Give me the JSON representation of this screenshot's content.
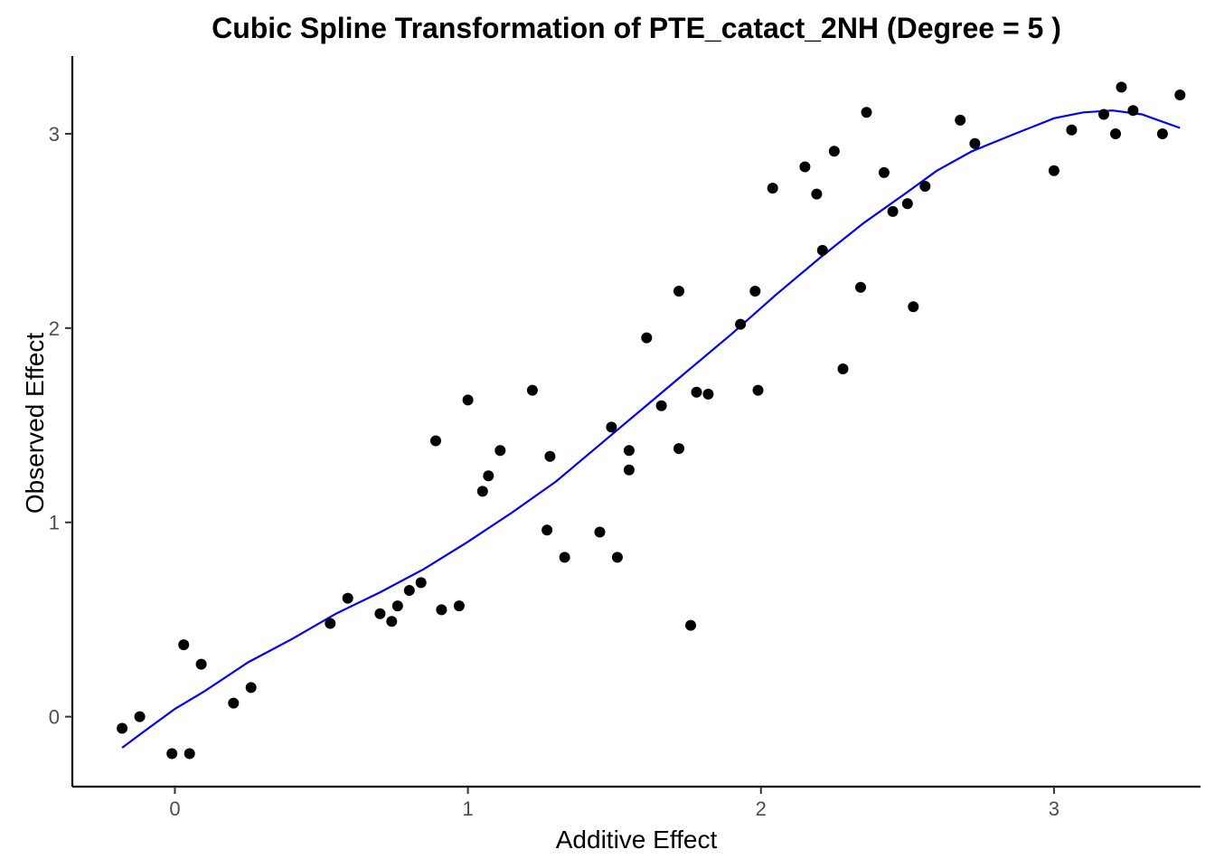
{
  "chart_data": {
    "type": "scatter",
    "title": "Cubic Spline Transformation of PTE_catact_2NH (Degree = 5 )",
    "xlabel": "Additive Effect",
    "ylabel": "Observed Effect",
    "xlim": [
      -0.35,
      3.5
    ],
    "ylim": [
      -0.36,
      3.4
    ],
    "x_ticks": [
      0,
      1,
      2,
      3
    ],
    "y_ticks": [
      0,
      1,
      2,
      3
    ],
    "x_tick_labels": [
      "0",
      "1",
      "2",
      "3"
    ],
    "y_tick_labels": [
      "0",
      "1",
      "2",
      "3"
    ],
    "grid": false,
    "legend": "none",
    "colors": {
      "points": "#000000",
      "spline": "#0000ff"
    },
    "series": [
      {
        "kind": "points",
        "points": [
          {
            "x": -0.18,
            "y": -0.06
          },
          {
            "x": -0.12,
            "y": 0.0
          },
          {
            "x": -0.01,
            "y": -0.19
          },
          {
            "x": 0.03,
            "y": 0.37
          },
          {
            "x": 0.05,
            "y": -0.19
          },
          {
            "x": 0.09,
            "y": 0.27
          },
          {
            "x": 0.2,
            "y": 0.07
          },
          {
            "x": 0.26,
            "y": 0.15
          },
          {
            "x": 0.53,
            "y": 0.48
          },
          {
            "x": 0.59,
            "y": 0.61
          },
          {
            "x": 0.7,
            "y": 0.53
          },
          {
            "x": 0.74,
            "y": 0.49
          },
          {
            "x": 0.76,
            "y": 0.57
          },
          {
            "x": 0.8,
            "y": 0.65
          },
          {
            "x": 0.84,
            "y": 0.69
          },
          {
            "x": 0.89,
            "y": 1.42
          },
          {
            "x": 0.91,
            "y": 0.55
          },
          {
            "x": 0.97,
            "y": 0.57
          },
          {
            "x": 1.0,
            "y": 1.63
          },
          {
            "x": 1.05,
            "y": 1.16
          },
          {
            "x": 1.07,
            "y": 1.24
          },
          {
            "x": 1.11,
            "y": 1.37
          },
          {
            "x": 1.22,
            "y": 1.68
          },
          {
            "x": 1.27,
            "y": 0.96
          },
          {
            "x": 1.28,
            "y": 1.34
          },
          {
            "x": 1.33,
            "y": 0.82
          },
          {
            "x": 1.45,
            "y": 0.95
          },
          {
            "x": 1.49,
            "y": 1.49
          },
          {
            "x": 1.51,
            "y": 0.82
          },
          {
            "x": 1.55,
            "y": 1.37
          },
          {
            "x": 1.55,
            "y": 1.27
          },
          {
            "x": 1.61,
            "y": 1.95
          },
          {
            "x": 1.66,
            "y": 1.6
          },
          {
            "x": 1.72,
            "y": 1.38
          },
          {
            "x": 1.72,
            "y": 2.19
          },
          {
            "x": 1.76,
            "y": 0.47
          },
          {
            "x": 1.78,
            "y": 1.67
          },
          {
            "x": 1.82,
            "y": 1.66
          },
          {
            "x": 1.93,
            "y": 2.02
          },
          {
            "x": 1.98,
            "y": 2.19
          },
          {
            "x": 1.99,
            "y": 1.68
          },
          {
            "x": 2.04,
            "y": 2.72
          },
          {
            "x": 2.15,
            "y": 2.83
          },
          {
            "x": 2.19,
            "y": 2.69
          },
          {
            "x": 2.21,
            "y": 2.4
          },
          {
            "x": 2.25,
            "y": 2.91
          },
          {
            "x": 2.28,
            "y": 1.79
          },
          {
            "x": 2.34,
            "y": 2.21
          },
          {
            "x": 2.36,
            "y": 3.11
          },
          {
            "x": 2.42,
            "y": 2.8
          },
          {
            "x": 2.45,
            "y": 2.6
          },
          {
            "x": 2.5,
            "y": 2.64
          },
          {
            "x": 2.52,
            "y": 2.11
          },
          {
            "x": 2.56,
            "y": 2.73
          },
          {
            "x": 2.68,
            "y": 3.07
          },
          {
            "x": 2.73,
            "y": 2.95
          },
          {
            "x": 3.0,
            "y": 2.81
          },
          {
            "x": 3.06,
            "y": 3.02
          },
          {
            "x": 3.17,
            "y": 3.1
          },
          {
            "x": 3.21,
            "y": 3.0
          },
          {
            "x": 3.23,
            "y": 3.24
          },
          {
            "x": 3.27,
            "y": 3.12
          },
          {
            "x": 3.37,
            "y": 3.0
          },
          {
            "x": 3.43,
            "y": 3.2
          }
        ]
      },
      {
        "kind": "line",
        "points": [
          {
            "x": -0.18,
            "y": -0.16
          },
          {
            "x": -0.1,
            "y": -0.07
          },
          {
            "x": 0.0,
            "y": 0.04
          },
          {
            "x": 0.1,
            "y": 0.13
          },
          {
            "x": 0.25,
            "y": 0.28
          },
          {
            "x": 0.4,
            "y": 0.4
          },
          {
            "x": 0.55,
            "y": 0.53
          },
          {
            "x": 0.7,
            "y": 0.64
          },
          {
            "x": 0.85,
            "y": 0.76
          },
          {
            "x": 1.0,
            "y": 0.9
          },
          {
            "x": 1.15,
            "y": 1.05
          },
          {
            "x": 1.3,
            "y": 1.21
          },
          {
            "x": 1.45,
            "y": 1.4
          },
          {
            "x": 1.6,
            "y": 1.59
          },
          {
            "x": 1.75,
            "y": 1.78
          },
          {
            "x": 1.9,
            "y": 1.97
          },
          {
            "x": 2.05,
            "y": 2.17
          },
          {
            "x": 2.2,
            "y": 2.36
          },
          {
            "x": 2.35,
            "y": 2.54
          },
          {
            "x": 2.5,
            "y": 2.7
          },
          {
            "x": 2.6,
            "y": 2.81
          },
          {
            "x": 2.72,
            "y": 2.91
          },
          {
            "x": 2.85,
            "y": 2.99
          },
          {
            "x": 3.0,
            "y": 3.08
          },
          {
            "x": 3.1,
            "y": 3.11
          },
          {
            "x": 3.2,
            "y": 3.12
          },
          {
            "x": 3.3,
            "y": 3.1
          },
          {
            "x": 3.43,
            "y": 3.03
          }
        ]
      }
    ]
  }
}
